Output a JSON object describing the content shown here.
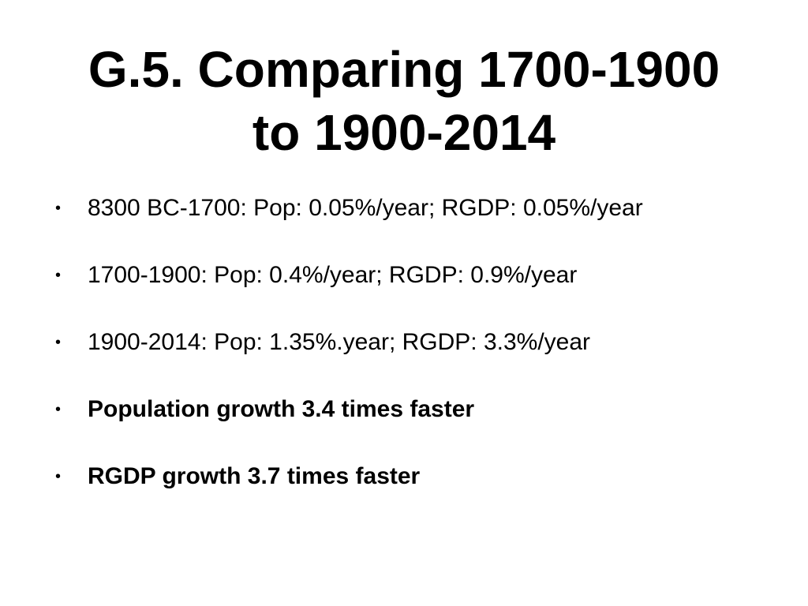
{
  "slide": {
    "title_line1": "G.5. Comparing 1700-1900",
    "title_line2": "to 1900-2014",
    "bullet_symbol": "•",
    "bullets": [
      {
        "text": "8300 BC-1700: Pop: 0.05%/year; RGDP: 0.05%/year"
      },
      {
        "text": "1700-1900: Pop: 0.4%/year; RGDP: 0.9%/year"
      },
      {
        "text": "1900-2014: Pop: 1.35%.year; RGDP: 3.3%/year"
      },
      {
        "text": "Population growth 3.4 times faster"
      },
      {
        "text": "RGDP growth 3.7 times faster"
      }
    ]
  }
}
